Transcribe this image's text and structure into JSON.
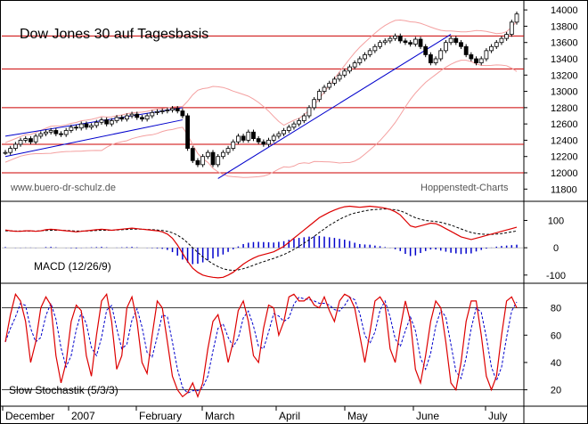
{
  "chart_data": {
    "type": "line",
    "title": "Dow Jones 30 auf Tagesbasis",
    "watermark": "www.buero-dr-schulz.de",
    "source": "Hoppenstedt-Charts",
    "months": [
      "December",
      "2007",
      "February",
      "March",
      "April",
      "May",
      "June",
      "July"
    ],
    "colors": {
      "price": "#000000",
      "support": "#cc0000",
      "trend": "#0000cc",
      "bands": "#f4a0a0",
      "macd": "#dd0000",
      "signal": "#000000",
      "hist": "#0000cc",
      "stoch_k": "#dd0000",
      "stoch_d": "#0000cc"
    },
    "price_panel": {
      "ylim": [
        11650,
        14100
      ],
      "ticks": [
        "14000",
        "13800",
        "13600",
        "13400",
        "13200",
        "13000",
        "12800",
        "12600",
        "12400",
        "12200",
        "12000",
        "11800"
      ],
      "support_levels": [
        13680,
        13275,
        12800,
        12350,
        12000
      ],
      "trend_lines": [
        {
          "from": [
            0,
            12450
          ],
          "to": [
            35,
            12800
          ]
        },
        {
          "from": [
            0,
            12200
          ],
          "to": [
            35,
            12650
          ]
        },
        {
          "from": [
            42,
            11930
          ],
          "to": [
            88,
            13700
          ]
        }
      ],
      "close": [
        12250,
        12300,
        12350,
        12400,
        12420,
        12380,
        12450,
        12480,
        12500,
        12520,
        12480,
        12470,
        12520,
        12560,
        12550,
        12600,
        12560,
        12580,
        12620,
        12650,
        12600,
        12640,
        12680,
        12660,
        12700,
        12720,
        12680,
        12660,
        12700,
        12740,
        12750,
        12760,
        12770,
        12790,
        12760,
        12700,
        12300,
        12150,
        12100,
        12200,
        12250,
        12100,
        12200,
        12250,
        12300,
        12380,
        12450,
        12400,
        12500,
        12420,
        12380,
        12350,
        12400,
        12450,
        12480,
        12520,
        12560,
        12600,
        12640,
        12700,
        12800,
        12900,
        13000,
        13050,
        13100,
        13150,
        13200,
        13250,
        13300,
        13350,
        13400,
        13450,
        13500,
        13550,
        13600,
        13620,
        13650,
        13680,
        13620,
        13600,
        13580,
        13640,
        13550,
        13450,
        13350,
        13400,
        13500,
        13600,
        13650,
        13600,
        13550,
        13450,
        13400,
        13350,
        13400,
        13500,
        13550,
        13600,
        13650,
        13700,
        13850,
        13950
      ]
    },
    "macd_panel": {
      "label": "MACD (12/26/9)",
      "ylim": [
        -130,
        170
      ],
      "ticks": [
        "100",
        "0",
        "-100"
      ],
      "macd": [
        65,
        62,
        60,
        60,
        62,
        62,
        60,
        62,
        66,
        68,
        66,
        64,
        62,
        60,
        58,
        60,
        62,
        64,
        66,
        68,
        66,
        64,
        66,
        68,
        70,
        72,
        70,
        68,
        66,
        64,
        62,
        58,
        50,
        35,
        10,
        -20,
        -50,
        -75,
        -90,
        -100,
        -105,
        -108,
        -110,
        -108,
        -100,
        -90,
        -75,
        -60,
        -48,
        -38,
        -30,
        -25,
        -20,
        -15,
        -5,
        5,
        20,
        35,
        50,
        65,
        80,
        95,
        110,
        120,
        130,
        138,
        145,
        150,
        152,
        150,
        148,
        150,
        152,
        150,
        148,
        145,
        140,
        132,
        120,
        100,
        80,
        75,
        80,
        85,
        90,
        88,
        80,
        70,
        60,
        50,
        40,
        35,
        30,
        35,
        40,
        45,
        50,
        55,
        60,
        65,
        70,
        75
      ],
      "signal": [
        62,
        62,
        61,
        61,
        61,
        61,
        61,
        62,
        63,
        64,
        64,
        64,
        63,
        62,
        61,
        61,
        61,
        62,
        63,
        64,
        64,
        64,
        65,
        66,
        67,
        68,
        68,
        68,
        67,
        66,
        65,
        63,
        60,
        55,
        46,
        34,
        18,
        0,
        -17,
        -33,
        -47,
        -59,
        -69,
        -77,
        -81,
        -83,
        -81,
        -77,
        -71,
        -64,
        -57,
        -51,
        -45,
        -39,
        -32,
        -25,
        -16,
        -6,
        5,
        17,
        29,
        42,
        56,
        69,
        82,
        93,
        104,
        113,
        121,
        127,
        131,
        135,
        138,
        140,
        141,
        142,
        141,
        139,
        135,
        128,
        118,
        110,
        104,
        100,
        98,
        96,
        93,
        88,
        83,
        76,
        69,
        62,
        56,
        52,
        50,
        49,
        49,
        50,
        52,
        55,
        58,
        61
      ]
    },
    "stoch_panel": {
      "label": "Slow Stochastik (5/3/3)",
      "ylim": [
        8,
        98
      ],
      "ticks": [
        "80",
        "60",
        "40",
        "20"
      ],
      "levels": [
        80,
        20
      ],
      "k": [
        55,
        75,
        90,
        85,
        70,
        40,
        55,
        80,
        88,
        82,
        45,
        25,
        40,
        70,
        82,
        78,
        45,
        30,
        60,
        85,
        90,
        70,
        35,
        45,
        80,
        88,
        70,
        40,
        32,
        60,
        85,
        80,
        55,
        30,
        20,
        15,
        18,
        25,
        15,
        25,
        50,
        70,
        75,
        60,
        40,
        55,
        78,
        85,
        70,
        45,
        40,
        65,
        82,
        80,
        60,
        70,
        88,
        90,
        85,
        85,
        88,
        82,
        80,
        88,
        78,
        70,
        85,
        90,
        88,
        80,
        60,
        40,
        62,
        85,
        88,
        82,
        50,
        40,
        65,
        85,
        70,
        35,
        25,
        45,
        70,
        85,
        80,
        55,
        25,
        20,
        40,
        70,
        85,
        85,
        60,
        30,
        20,
        30,
        60,
        85,
        88,
        80
      ]
    }
  }
}
